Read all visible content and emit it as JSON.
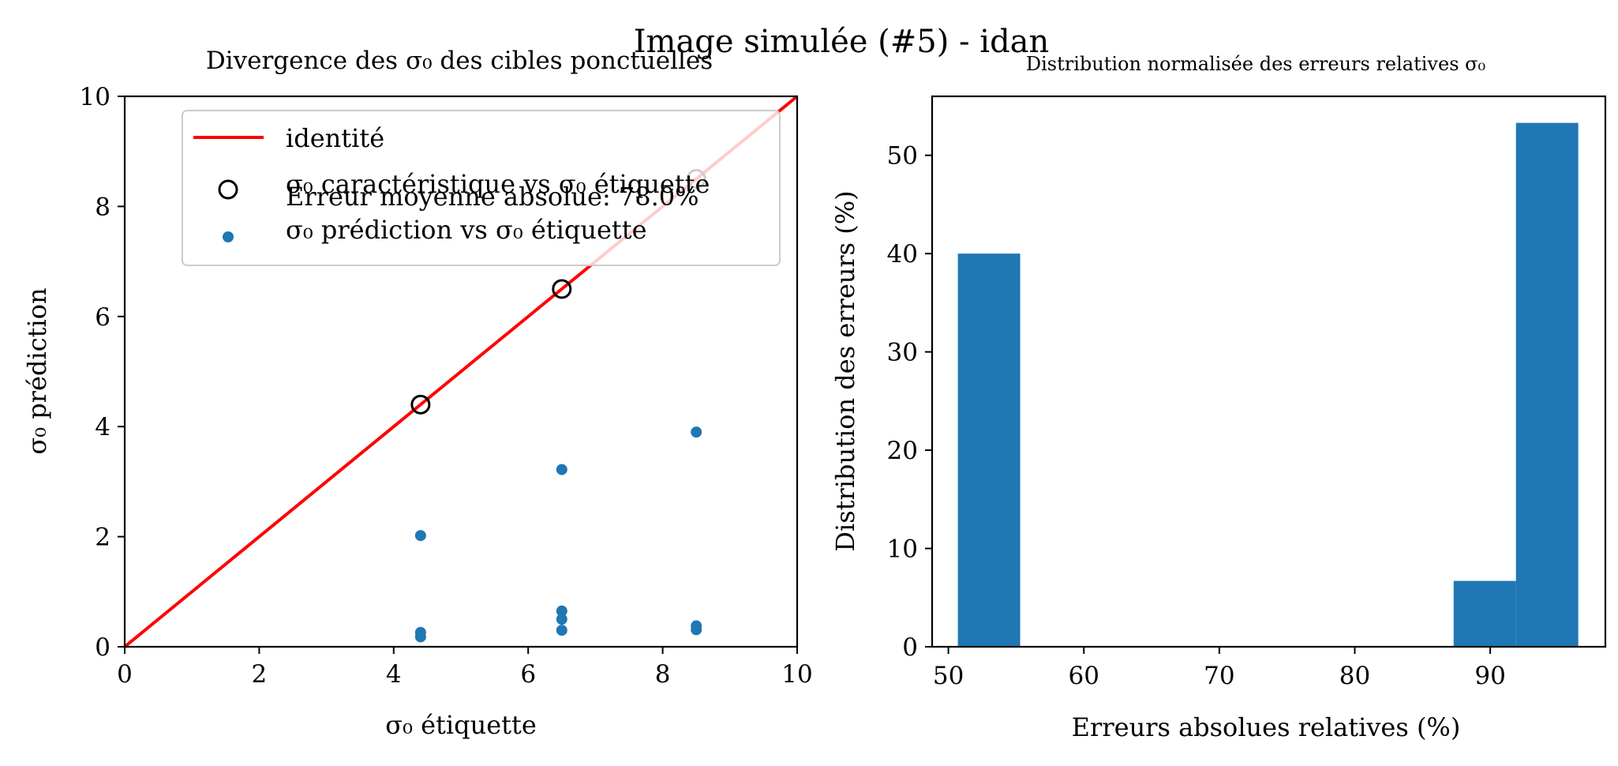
{
  "figure": {
    "suptitle": "Image simulée (#5) - idan"
  },
  "colors": {
    "identity_line": "#ff0000",
    "characteristic_marker_edge": "#000000",
    "prediction_points": "#1f77b4",
    "histogram_bars": "#1f77b4"
  },
  "chart_data": [
    {
      "type": "scatter",
      "title": "Divergence des σ₀ des cibles ponctuelles",
      "xlabel": "σ₀ étiquette",
      "ylabel": "σ₀ prédiction",
      "xlim": [
        0,
        10
      ],
      "ylim": [
        0,
        10
      ],
      "xticks": [
        "0",
        "2",
        "4",
        "6",
        "8",
        "10"
      ],
      "yticks": [
        "0",
        "2",
        "4",
        "6",
        "8",
        "10"
      ],
      "grid": false,
      "legend_position": "top",
      "annotation": "Erreur moyenne absolue: 78.0%",
      "series": [
        {
          "name": "identité",
          "kind": "line",
          "color": "#ff0000",
          "points": [
            [
              0,
              0
            ],
            [
              10,
              10
            ]
          ]
        },
        {
          "name": "σ₀ caractéristique vs σ₀ étiquette",
          "kind": "open-circle",
          "color": "#000000",
          "points": [
            [
              4.4,
              4.4
            ],
            [
              6.5,
              6.5
            ],
            [
              8.5,
              8.5
            ]
          ]
        },
        {
          "name": "σ₀ prédiction vs σ₀ étiquette",
          "kind": "dot",
          "color": "#1f77b4",
          "points": [
            [
              4.4,
              2.02
            ],
            [
              4.4,
              0.26
            ],
            [
              4.4,
              0.18
            ],
            [
              6.5,
              3.22
            ],
            [
              6.5,
              0.65
            ],
            [
              6.5,
              0.5
            ],
            [
              6.5,
              0.3
            ],
            [
              8.5,
              3.9
            ],
            [
              8.5,
              0.38
            ],
            [
              8.5,
              0.31
            ]
          ]
        }
      ]
    },
    {
      "type": "bar",
      "title": "Distribution normalisée des erreurs relatives σ₀",
      "xlabel": "Erreurs absolues relatives (%)",
      "ylabel": "Distribution des erreurs (%)",
      "xlim": [
        48.8,
        98.5
      ],
      "ylim": [
        0,
        56
      ],
      "xticks": [
        "50",
        "60",
        "70",
        "80",
        "90"
      ],
      "yticks": [
        "0",
        "10",
        "20",
        "30",
        "40",
        "50"
      ],
      "grid": false,
      "bins": [
        [
          50.7,
          55.3,
          40.0
        ],
        [
          87.3,
          91.9,
          6.7
        ],
        [
          91.9,
          96.5,
          53.3
        ]
      ]
    }
  ]
}
